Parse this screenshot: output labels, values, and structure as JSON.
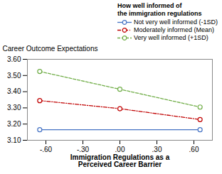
{
  "chart_data": {
    "type": "line",
    "title": "How well informed of\nthe immigration regulations",
    "xlabel": "Immigration Regulations as a\nPerceived Career Barrier",
    "ylabel": "Career Outcome Expectations",
    "xlim": [
      -0.75,
      0.75
    ],
    "ylim": [
      3.1,
      3.6
    ],
    "xticks": [
      {
        "value": -0.6,
        "label": "-.60"
      },
      {
        "value": -0.3,
        "label": "-.30"
      },
      {
        "value": 0.0,
        "label": ".00"
      },
      {
        "value": 0.3,
        "label": ".30"
      },
      {
        "value": 0.6,
        "label": ".60"
      }
    ],
    "yticks": [
      {
        "value": 3.1,
        "label": "3.10"
      },
      {
        "value": 3.2,
        "label": "3.20"
      },
      {
        "value": 3.3,
        "label": "3.30"
      },
      {
        "value": 3.4,
        "label": "3.40"
      },
      {
        "value": 3.5,
        "label": "3.50"
      },
      {
        "value": 3.6,
        "label": "3.60"
      }
    ],
    "legend": "top",
    "series": [
      {
        "name": "Not very well informed (-1SD)",
        "color": "#4472C4",
        "line_style": "solid",
        "marker": "circle",
        "x": [
          -0.65,
          0.65
        ],
        "values": [
          3.165,
          3.165
        ]
      },
      {
        "name": "Moderately informed (Mean)",
        "color": "#C00000",
        "line_style": "dashdot",
        "marker": "circle",
        "x": [
          -0.65,
          0.0,
          0.65
        ],
        "values": [
          3.345,
          3.295,
          3.228
        ]
      },
      {
        "name": "Very well informed (+1SD)",
        "color": "#70AD47",
        "line_style": "dashed",
        "marker": "circle",
        "x": [
          -0.65,
          0.0,
          0.65
        ],
        "values": [
          3.525,
          3.415,
          3.305
        ]
      }
    ]
  }
}
